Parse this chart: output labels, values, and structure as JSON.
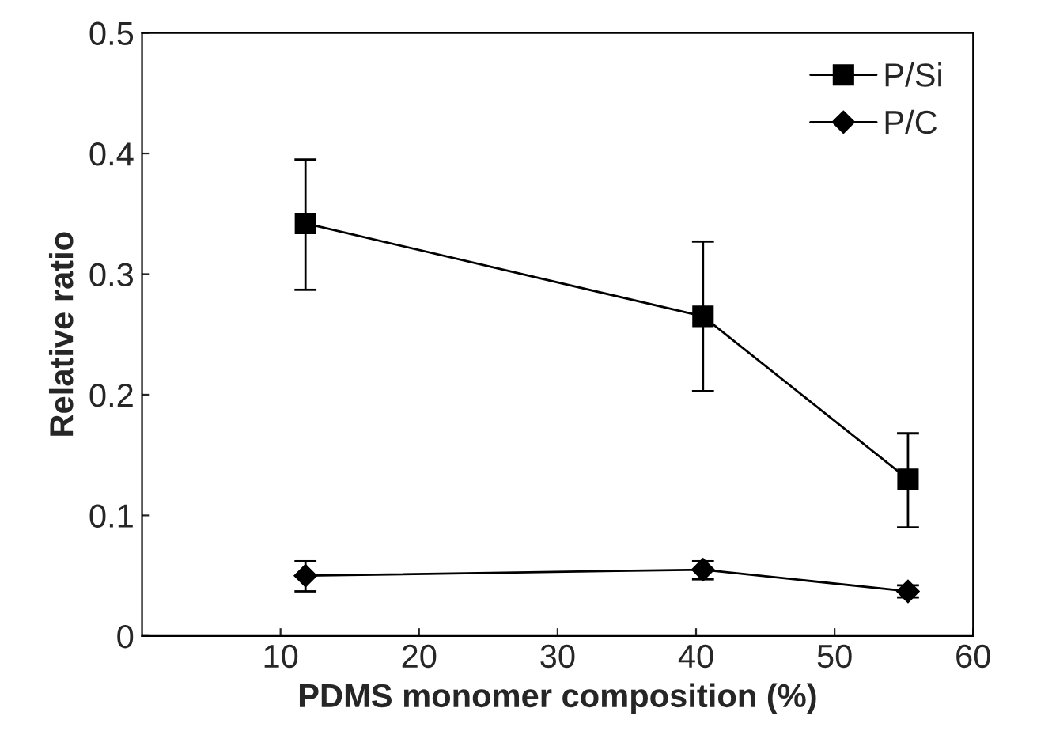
{
  "chart_data": {
    "type": "line",
    "xlabel": "PDMS monomer composition (%)",
    "ylabel": "Relative ratio",
    "x": [
      11.8,
      40.5,
      55.3
    ],
    "series": [
      {
        "name": "P/Si",
        "color": "#000000",
        "marker": "square",
        "values": [
          0.342,
          0.265,
          0.13
        ],
        "errors": [
          [
            0.287,
            0.395
          ],
          [
            0.203,
            0.327
          ],
          [
            0.09,
            0.168
          ]
        ]
      },
      {
        "name": "P/C",
        "color": "#000000",
        "marker": "diamond",
        "values": [
          0.05,
          0.055,
          0.037
        ],
        "errors": [
          [
            0.037,
            0.062
          ],
          [
            0.047,
            0.062
          ],
          [
            0.032,
            0.042
          ]
        ]
      }
    ],
    "xlim": [
      0,
      60
    ],
    "xticks": [
      10,
      20,
      30,
      40,
      50,
      60
    ],
    "ylim": [
      0,
      0.5
    ],
    "yticks": [
      0,
      0.1,
      0.2,
      0.3,
      0.4,
      0.5
    ],
    "grid": false,
    "legend": "top right",
    "line_style": "solid"
  }
}
